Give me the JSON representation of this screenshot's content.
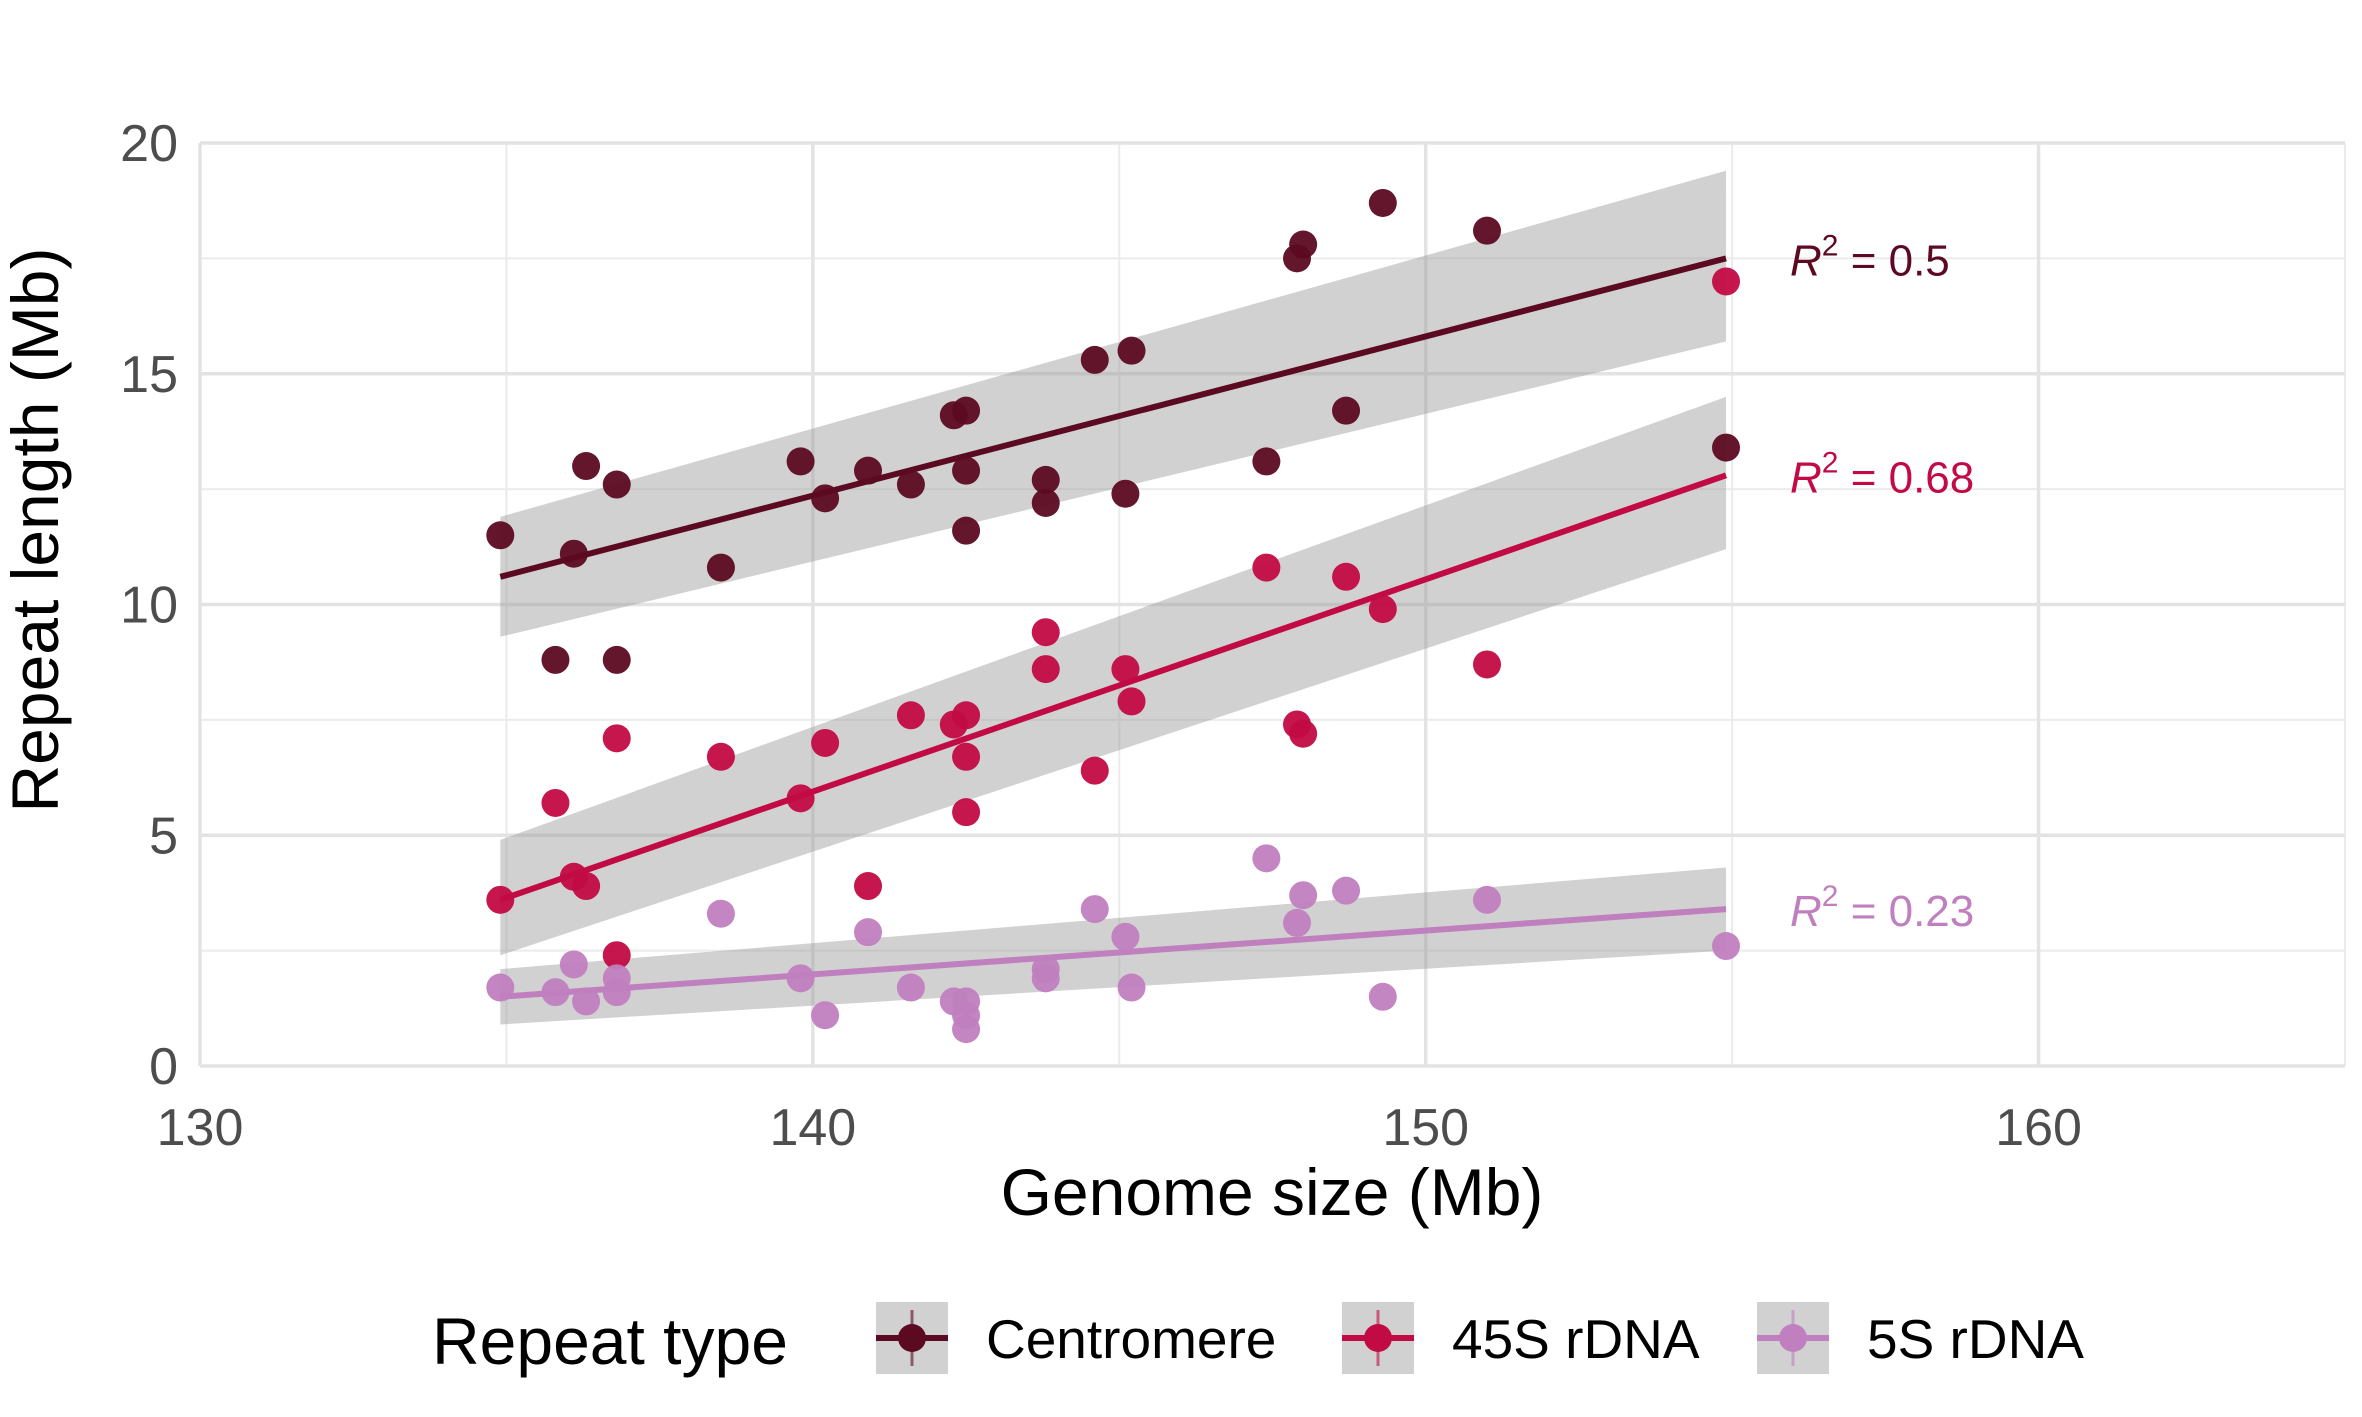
{
  "chart_data": {
    "type": "scatter",
    "xlabel": "Genome size (Mb)",
    "ylabel": "Repeat length (Mb)",
    "xlim": [
      130,
      165
    ],
    "ylim": [
      0,
      20
    ],
    "x_ticks": [
      "130",
      "140",
      "150",
      "160"
    ],
    "x_tick_values": [
      130,
      140,
      150,
      160
    ],
    "y_ticks": [
      "0",
      "5",
      "10",
      "15",
      "20"
    ],
    "y_tick_values": [
      0,
      5,
      10,
      15,
      20
    ],
    "grid": true,
    "legend": {
      "title": "Repeat type",
      "position": "bottom",
      "entries": [
        "Centromere",
        "45S rDNA",
        "5S rDNA"
      ]
    },
    "series": [
      {
        "name": "Centromere",
        "color": "#5c0a22",
        "r2_prefix": "R",
        "r2_exp": "2",
        "r2_value": " = 0.5",
        "trend": {
          "x": [
            134.9,
            154.9
          ],
          "y": [
            10.6,
            17.5
          ],
          "ci_low": [
            9.3,
            15.7
          ],
          "ci_high": [
            11.9,
            19.4
          ]
        },
        "points": [
          [
            134.9,
            11.5
          ],
          [
            135.8,
            8.8
          ],
          [
            136.1,
            11.1
          ],
          [
            136.3,
            13.0
          ],
          [
            136.8,
            8.8
          ],
          [
            136.8,
            12.6
          ],
          [
            138.5,
            10.8
          ],
          [
            139.8,
            13.1
          ],
          [
            140.2,
            12.3
          ],
          [
            140.9,
            12.9
          ],
          [
            141.6,
            12.6
          ],
          [
            142.3,
            14.1
          ],
          [
            142.5,
            14.2
          ],
          [
            142.5,
            12.9
          ],
          [
            142.5,
            11.6
          ],
          [
            143.8,
            12.7
          ],
          [
            143.8,
            12.2
          ],
          [
            144.6,
            15.3
          ],
          [
            145.1,
            12.4
          ],
          [
            145.2,
            15.5
          ],
          [
            147.4,
            13.1
          ],
          [
            147.9,
            17.5
          ],
          [
            148.0,
            17.8
          ],
          [
            148.7,
            14.2
          ],
          [
            149.3,
            18.7
          ],
          [
            151.0,
            18.1
          ],
          [
            154.9,
            13.4
          ]
        ]
      },
      {
        "name": "45S rDNA",
        "color": "#c20a45",
        "r2_prefix": "R",
        "r2_exp": "2",
        "r2_value": " = 0.68",
        "trend": {
          "x": [
            134.9,
            154.9
          ],
          "y": [
            3.6,
            12.8
          ],
          "ci_low": [
            2.4,
            11.2
          ],
          "ci_high": [
            4.9,
            14.5
          ]
        },
        "points": [
          [
            134.9,
            3.6
          ],
          [
            135.8,
            5.7
          ],
          [
            136.1,
            4.1
          ],
          [
            136.3,
            3.9
          ],
          [
            136.8,
            7.1
          ],
          [
            136.8,
            2.4
          ],
          [
            138.5,
            6.7
          ],
          [
            139.8,
            5.8
          ],
          [
            140.2,
            7.0
          ],
          [
            140.9,
            3.9
          ],
          [
            141.6,
            7.6
          ],
          [
            142.3,
            7.4
          ],
          [
            142.5,
            7.6
          ],
          [
            142.5,
            6.7
          ],
          [
            142.5,
            5.5
          ],
          [
            143.8,
            9.4
          ],
          [
            143.8,
            8.6
          ],
          [
            144.6,
            6.4
          ],
          [
            145.1,
            8.6
          ],
          [
            145.2,
            7.9
          ],
          [
            147.4,
            10.8
          ],
          [
            147.9,
            7.4
          ],
          [
            148.0,
            7.2
          ],
          [
            148.7,
            10.6
          ],
          [
            149.3,
            9.9
          ],
          [
            151.0,
            8.7
          ],
          [
            154.9,
            17.0
          ]
        ]
      },
      {
        "name": "5S rDNA",
        "color": "#c07fbf",
        "r2_prefix": "R",
        "r2_exp": "2",
        "r2_value": " = 0.23",
        "trend": {
          "x": [
            134.9,
            154.9
          ],
          "y": [
            1.5,
            3.4
          ],
          "ci_low": [
            0.9,
            2.5
          ],
          "ci_high": [
            2.1,
            4.3
          ]
        },
        "points": [
          [
            134.9,
            1.7
          ],
          [
            135.8,
            1.6
          ],
          [
            136.1,
            2.2
          ],
          [
            136.3,
            1.4
          ],
          [
            136.8,
            1.9
          ],
          [
            136.8,
            1.6
          ],
          [
            138.5,
            3.3
          ],
          [
            139.8,
            1.9
          ],
          [
            140.2,
            1.1
          ],
          [
            140.9,
            2.9
          ],
          [
            141.6,
            1.7
          ],
          [
            142.3,
            1.4
          ],
          [
            142.5,
            1.4
          ],
          [
            142.5,
            1.1
          ],
          [
            142.5,
            0.8
          ],
          [
            143.8,
            2.1
          ],
          [
            143.8,
            1.9
          ],
          [
            144.6,
            3.4
          ],
          [
            145.1,
            2.8
          ],
          [
            145.2,
            1.7
          ],
          [
            147.4,
            4.5
          ],
          [
            147.9,
            3.1
          ],
          [
            148.0,
            3.7
          ],
          [
            148.7,
            3.8
          ],
          [
            149.3,
            1.5
          ],
          [
            151.0,
            3.6
          ],
          [
            154.9,
            2.6
          ]
        ]
      }
    ]
  }
}
